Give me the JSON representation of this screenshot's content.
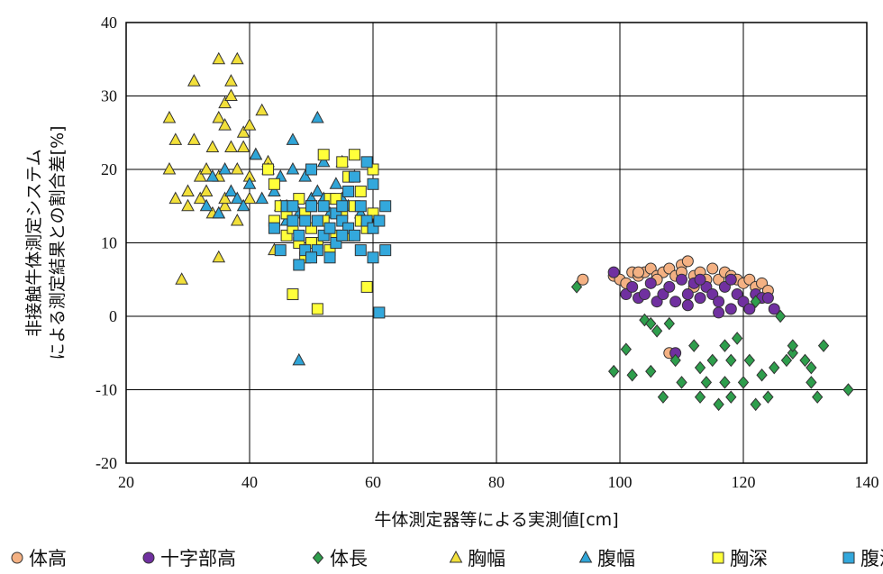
{
  "chart_data": {
    "type": "scatter",
    "title": "",
    "xlabel": "牛体測定器等による実測値[cm]",
    "ylabel_lines": [
      "非接触牛体測定システム",
      "による測定結果との割合差[%]"
    ],
    "xlim": [
      20,
      140
    ],
    "ylim": [
      -20,
      40
    ],
    "x_ticks": [
      20,
      40,
      60,
      80,
      100,
      120,
      140
    ],
    "y_ticks": [
      -20,
      -10,
      0,
      10,
      20,
      30,
      40
    ],
    "grid": true,
    "legend_position": "bottom",
    "series": [
      {
        "name": "体高",
        "marker": "circle",
        "color": "#f4b183",
        "points": [
          [
            94,
            5
          ],
          [
            99,
            5.5
          ],
          [
            100,
            5
          ],
          [
            101,
            4.5
          ],
          [
            102,
            6
          ],
          [
            103,
            5.5
          ],
          [
            104,
            6
          ],
          [
            105,
            6.5
          ],
          [
            106,
            5.5
          ],
          [
            107,
            6
          ],
          [
            108,
            6.5
          ],
          [
            109,
            5.5
          ],
          [
            110,
            7
          ],
          [
            110,
            6
          ],
          [
            111,
            7.5
          ],
          [
            112,
            5.5
          ],
          [
            113,
            6
          ],
          [
            114,
            5
          ],
          [
            115,
            6.5
          ],
          [
            116,
            5
          ],
          [
            117,
            6
          ],
          [
            118,
            5.5
          ],
          [
            119,
            5
          ],
          [
            120,
            4.5
          ],
          [
            121,
            5
          ],
          [
            122,
            4
          ],
          [
            123,
            4.5
          ],
          [
            124,
            3.5
          ],
          [
            108,
            -5
          ],
          [
            112,
            4
          ],
          [
            103,
            6
          ],
          [
            106,
            5
          ]
        ]
      },
      {
        "name": "十字部高",
        "marker": "circle",
        "color": "#7030a0",
        "points": [
          [
            99,
            6
          ],
          [
            101,
            3
          ],
          [
            102,
            4
          ],
          [
            103,
            2.5
          ],
          [
            104,
            3
          ],
          [
            105,
            4.5
          ],
          [
            106,
            2
          ],
          [
            107,
            3
          ],
          [
            108,
            4
          ],
          [
            109,
            2
          ],
          [
            110,
            5
          ],
          [
            111,
            3
          ],
          [
            112,
            4.5
          ],
          [
            113,
            2.5
          ],
          [
            114,
            4
          ],
          [
            115,
            3
          ],
          [
            116,
            2
          ],
          [
            117,
            4
          ],
          [
            118,
            5
          ],
          [
            118,
            1
          ],
          [
            119,
            3
          ],
          [
            120,
            2
          ],
          [
            121,
            1
          ],
          [
            122,
            3
          ],
          [
            123,
            2.5
          ],
          [
            124,
            2.5
          ],
          [
            125,
            1
          ],
          [
            109,
            -5
          ],
          [
            111,
            1.5
          ],
          [
            116,
            0.5
          ],
          [
            113,
            5
          ]
        ]
      },
      {
        "name": "体長",
        "marker": "diamond",
        "color": "#2e9e4c",
        "points": [
          [
            93,
            4
          ],
          [
            99,
            -7.5
          ],
          [
            101,
            -4.5
          ],
          [
            102,
            -8
          ],
          [
            104,
            -0.5
          ],
          [
            105,
            -1
          ],
          [
            105,
            -7.5
          ],
          [
            106,
            -2
          ],
          [
            107,
            -11
          ],
          [
            108,
            -1
          ],
          [
            109,
            -6
          ],
          [
            110,
            -9
          ],
          [
            112,
            -4
          ],
          [
            113,
            -11
          ],
          [
            113,
            -7
          ],
          [
            114,
            -9
          ],
          [
            115,
            -6
          ],
          [
            116,
            -12
          ],
          [
            117,
            -4
          ],
          [
            117,
            -9
          ],
          [
            118,
            -11
          ],
          [
            118,
            -6
          ],
          [
            119,
            -3
          ],
          [
            120,
            -9
          ],
          [
            121,
            -6
          ],
          [
            122,
            -12
          ],
          [
            123,
            -8
          ],
          [
            124,
            -11
          ],
          [
            125,
            -7
          ],
          [
            126,
            0
          ],
          [
            127,
            -6
          ],
          [
            128,
            -5
          ],
          [
            128,
            -4
          ],
          [
            130,
            -6
          ],
          [
            131,
            -9
          ],
          [
            132,
            -11
          ],
          [
            133,
            -4
          ],
          [
            131,
            -7
          ],
          [
            137,
            -10
          ],
          [
            122,
            2
          ]
        ]
      },
      {
        "name": "胸幅",
        "marker": "triangle",
        "color": "#f2e03a",
        "points": [
          [
            27,
            27
          ],
          [
            27,
            20
          ],
          [
            28,
            24
          ],
          [
            28,
            16
          ],
          [
            29,
            5
          ],
          [
            30,
            17
          ],
          [
            31,
            32
          ],
          [
            31,
            24
          ],
          [
            32,
            19
          ],
          [
            32,
            16
          ],
          [
            33,
            20
          ],
          [
            34,
            23
          ],
          [
            34,
            14
          ],
          [
            35,
            35
          ],
          [
            35,
            27
          ],
          [
            35,
            19
          ],
          [
            35,
            8
          ],
          [
            36,
            29
          ],
          [
            36,
            26
          ],
          [
            36,
            15
          ],
          [
            37,
            32
          ],
          [
            37,
            30
          ],
          [
            37,
            23
          ],
          [
            38,
            35
          ],
          [
            38,
            20
          ],
          [
            38,
            13
          ],
          [
            39,
            25
          ],
          [
            40,
            26
          ],
          [
            40,
            19
          ],
          [
            40,
            16
          ],
          [
            41,
            22
          ],
          [
            42,
            28
          ],
          [
            43,
            21
          ],
          [
            44,
            9
          ],
          [
            45,
            15
          ],
          [
            35,
            14
          ],
          [
            33,
            17
          ],
          [
            30,
            15
          ],
          [
            39,
            23
          ],
          [
            36,
            16
          ]
        ]
      },
      {
        "name": "腹幅",
        "marker": "triangle",
        "color": "#2fa5d8",
        "points": [
          [
            33,
            15
          ],
          [
            34,
            19
          ],
          [
            35,
            14
          ],
          [
            36,
            20
          ],
          [
            37,
            17
          ],
          [
            38,
            16
          ],
          [
            39,
            15
          ],
          [
            40,
            18
          ],
          [
            41,
            22
          ],
          [
            42,
            16
          ],
          [
            43,
            20
          ],
          [
            44,
            17
          ],
          [
            45,
            19
          ],
          [
            46,
            15
          ],
          [
            46,
            13
          ],
          [
            47,
            24
          ],
          [
            47,
            20
          ],
          [
            48,
            14
          ],
          [
            48,
            -6
          ],
          [
            49,
            19
          ],
          [
            50,
            16
          ],
          [
            51,
            27
          ],
          [
            51,
            17
          ],
          [
            52,
            21
          ],
          [
            53,
            14
          ],
          [
            54,
            18
          ],
          [
            55,
            16
          ],
          [
            56,
            15
          ],
          [
            57,
            19
          ],
          [
            58,
            14
          ],
          [
            55,
            21
          ],
          [
            52,
            16
          ]
        ]
      },
      {
        "name": "胸深",
        "marker": "square",
        "color": "#ffff3a",
        "points": [
          [
            43,
            20
          ],
          [
            44,
            18
          ],
          [
            44,
            13
          ],
          [
            45,
            15
          ],
          [
            46,
            14
          ],
          [
            46,
            11
          ],
          [
            47,
            3
          ],
          [
            47,
            12
          ],
          [
            48,
            16
          ],
          [
            48,
            10
          ],
          [
            49,
            14
          ],
          [
            49,
            8
          ],
          [
            50,
            15
          ],
          [
            50,
            12
          ],
          [
            51,
            1
          ],
          [
            51,
            10
          ],
          [
            52,
            22
          ],
          [
            52,
            13
          ],
          [
            53,
            9
          ],
          [
            53,
            16
          ],
          [
            54,
            11
          ],
          [
            55,
            14
          ],
          [
            55,
            21
          ],
          [
            56,
            19
          ],
          [
            56,
            11
          ],
          [
            57,
            22
          ],
          [
            57,
            15
          ],
          [
            58,
            17
          ],
          [
            58,
            13
          ],
          [
            59,
            4
          ],
          [
            59,
            12
          ],
          [
            60,
            20
          ],
          [
            60,
            14
          ],
          [
            54,
            16
          ],
          [
            50,
            10
          ]
        ]
      },
      {
        "name": "腹深",
        "marker": "square",
        "color": "#33a8dc",
        "points": [
          [
            44,
            12
          ],
          [
            45,
            9
          ],
          [
            46,
            15
          ],
          [
            47,
            13
          ],
          [
            47,
            15
          ],
          [
            48,
            7
          ],
          [
            48,
            11
          ],
          [
            49,
            9
          ],
          [
            49,
            13
          ],
          [
            50,
            20
          ],
          [
            50,
            15
          ],
          [
            51,
            13
          ],
          [
            51,
            9
          ],
          [
            52,
            15
          ],
          [
            52,
            11
          ],
          [
            53,
            12
          ],
          [
            53,
            8
          ],
          [
            54,
            14
          ],
          [
            54,
            10
          ],
          [
            55,
            13
          ],
          [
            55,
            15
          ],
          [
            56,
            12
          ],
          [
            56,
            17
          ],
          [
            57,
            11
          ],
          [
            57,
            19
          ],
          [
            58,
            9
          ],
          [
            58,
            15
          ],
          [
            59,
            13
          ],
          [
            59,
            21
          ],
          [
            60,
            18
          ],
          [
            60,
            12
          ],
          [
            60,
            8
          ],
          [
            61,
            0.5
          ],
          [
            61,
            13
          ],
          [
            62,
            15
          ],
          [
            62,
            9
          ],
          [
            50,
            8
          ],
          [
            55,
            11
          ]
        ]
      }
    ]
  }
}
